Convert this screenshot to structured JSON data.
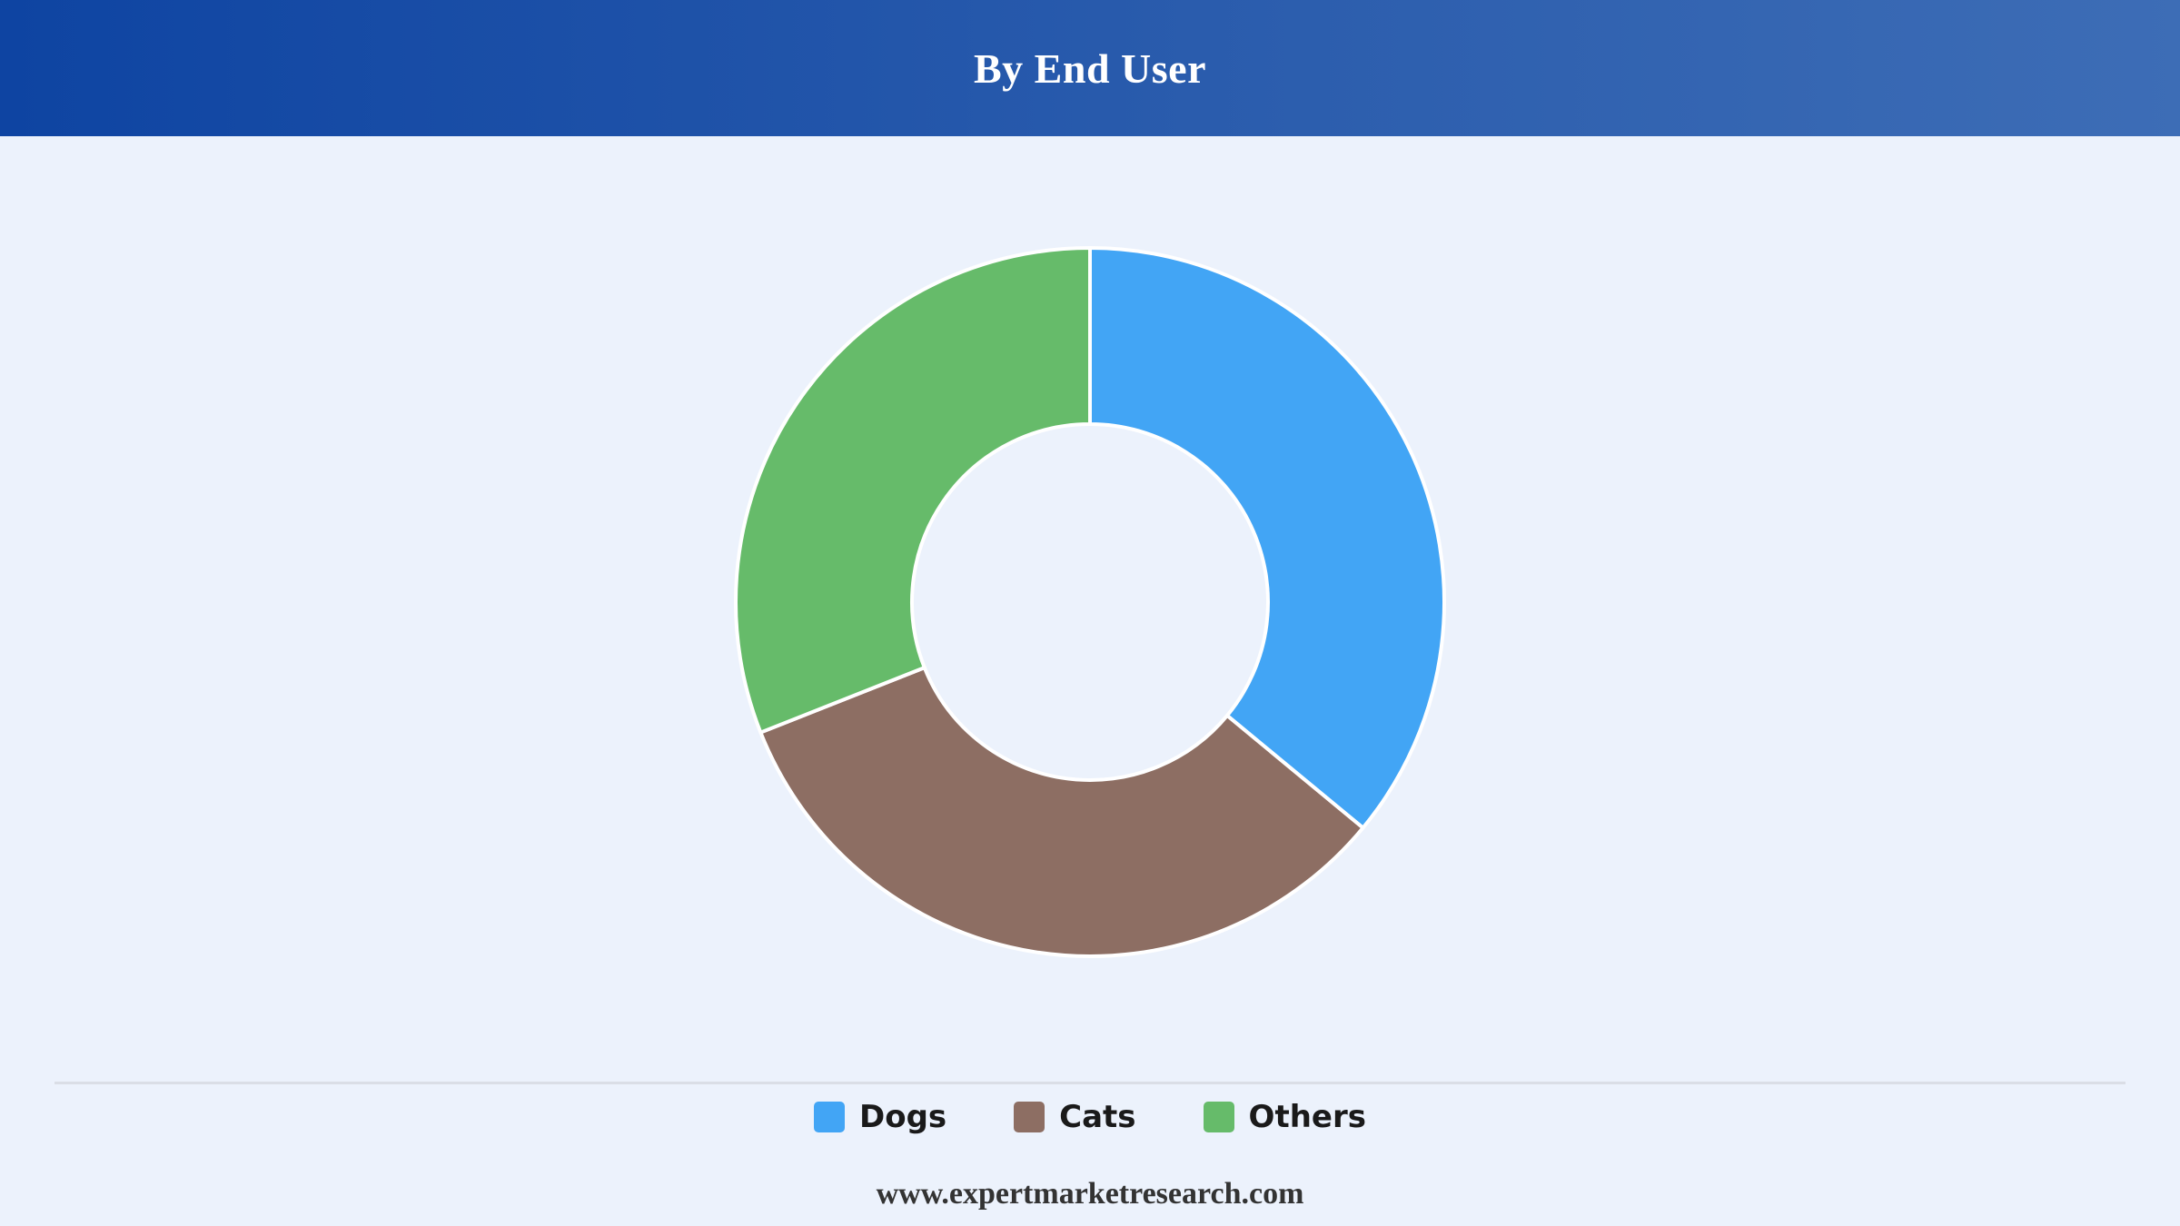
{
  "header": {
    "title": "By End User"
  },
  "colors": {
    "header_start": "#0e44a2",
    "header_end": "#3d6db6",
    "background": "#ecf2fc",
    "dogs": "#42a5f5",
    "cats": "#8d6e63",
    "others": "#66bb6a"
  },
  "chart_data": {
    "type": "pie",
    "variant": "donut",
    "title": "By End User",
    "categories": [
      "Dogs",
      "Cats",
      "Others"
    ],
    "values": [
      36,
      33,
      31
    ],
    "unit": "%",
    "colors": [
      "#42a5f5",
      "#8d6e63",
      "#66bb6a"
    ],
    "legend_position": "bottom-center"
  },
  "legend": {
    "items": [
      {
        "label": "Dogs",
        "color": "#42a5f5"
      },
      {
        "label": "Cats",
        "color": "#8d6e63"
      },
      {
        "label": "Others",
        "color": "#66bb6a"
      }
    ]
  },
  "footer": {
    "url_text": "www.expertmarketresearch.com"
  }
}
